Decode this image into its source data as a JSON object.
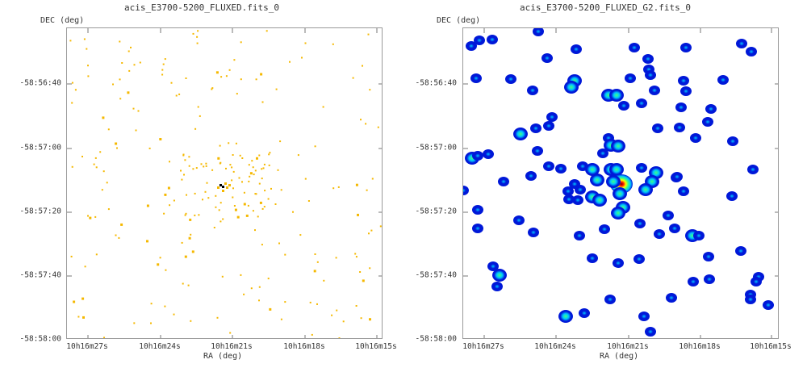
{
  "left": {
    "title": "acis_E3700-5200_FLUXED.fits_0",
    "y_axis_label": "DEC (deg)",
    "x_axis_label": "RA (deg)",
    "y_ticks": [
      "-58:56:40",
      "-58:57:00",
      "-58:57:20",
      "-58:57:40",
      "-58:58:00"
    ],
    "x_ticks": [
      "10h16m27s",
      "10h16m24s",
      "10h16m21s",
      "10h16m18s",
      "10h16m15s"
    ],
    "point_color": "#f5b800",
    "hot_color": "#000000"
  },
  "right": {
    "title": "acis_E3700-5200_FLUXED_G2.fits_0",
    "y_axis_label": "DEC (deg)",
    "x_axis_label": "RA (deg)",
    "y_ticks": [
      "-58:56:40",
      "-58:57:00",
      "-58:57:20",
      "-58:57:40",
      "-58:58:00"
    ],
    "x_ticks": [
      "10h16m27s",
      "10h16m24s",
      "10h16m21s",
      "10h16m18s",
      "10h16m15s"
    ],
    "blob_colors": [
      "#0018d8",
      "#00c8ff",
      "#40ff80",
      "#ffff00",
      "#ff2000",
      "#800000"
    ]
  }
}
